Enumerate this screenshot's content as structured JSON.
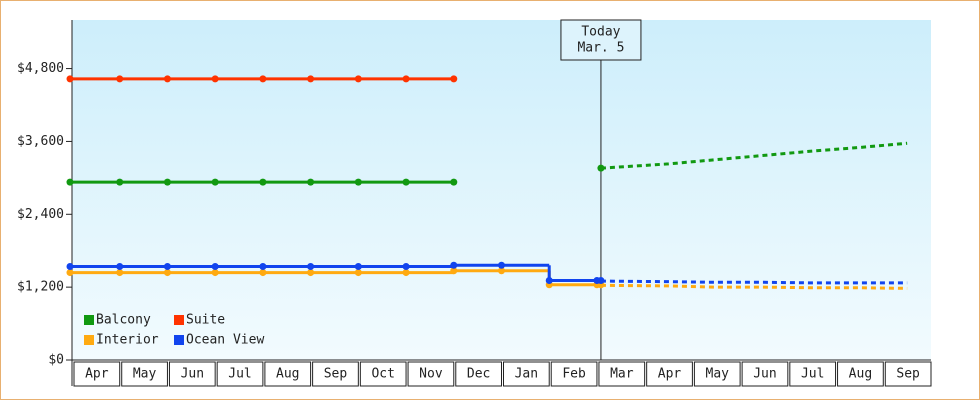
{
  "chart_data": {
    "type": "step-line",
    "categories": [
      "Apr",
      "May",
      "Jun",
      "Jul",
      "Aug",
      "Sep",
      "Oct",
      "Nov",
      "Dec",
      "Jan",
      "Feb",
      "Mar",
      "Apr",
      "May",
      "Jun",
      "Jul",
      "Aug",
      "Sep"
    ],
    "ylim": [
      0,
      5600
    ],
    "yticks": [
      {
        "value": 0,
        "label": "$0"
      },
      {
        "value": 1200,
        "label": "$1,200"
      },
      {
        "value": 2400,
        "label": "$2,400"
      },
      {
        "value": 3600,
        "label": "$3,600"
      },
      {
        "value": 4800,
        "label": "$4,800"
      }
    ],
    "series": [
      {
        "name": "Balcony",
        "color": "#119911",
        "values": [
          2930,
          2930,
          2930,
          2930,
          2930,
          2930,
          2930,
          2930,
          null,
          null,
          null,
          null,
          null,
          null,
          null,
          null,
          null,
          null
        ],
        "forecast": [
          null,
          null,
          null,
          null,
          null,
          null,
          null,
          null,
          null,
          null,
          null,
          3160,
          3230,
          3300,
          3370,
          3440,
          3500,
          3570
        ]
      },
      {
        "name": "Suite",
        "color": "#ff3300",
        "values": [
          4630,
          4630,
          4630,
          4630,
          4630,
          4630,
          4630,
          4630,
          null,
          null,
          null,
          null,
          null,
          null,
          null,
          null,
          null,
          null
        ]
      },
      {
        "name": "Interior",
        "color": "#ffaa11",
        "values": [
          1440,
          1440,
          1440,
          1440,
          1440,
          1440,
          1440,
          1440,
          1470,
          1470,
          1240,
          1240,
          null,
          null,
          null,
          null,
          null,
          null
        ],
        "forecast": [
          null,
          null,
          null,
          null,
          null,
          null,
          null,
          null,
          null,
          null,
          null,
          1230,
          1220,
          1200,
          1200,
          1190,
          1190,
          1180
        ]
      },
      {
        "name": "Ocean View",
        "color": "#1144ee",
        "values": [
          1540,
          1540,
          1540,
          1540,
          1540,
          1540,
          1540,
          1540,
          1560,
          1560,
          1310,
          1310,
          null,
          null,
          null,
          null,
          null,
          null
        ],
        "forecast": [
          null,
          null,
          null,
          null,
          null,
          null,
          null,
          null,
          null,
          null,
          null,
          1300,
          1290,
          1280,
          1280,
          1270,
          1270,
          1270
        ]
      }
    ],
    "annotation": {
      "lines": [
        "Today",
        "Mar. 5"
      ],
      "category": 11
    },
    "legend": "lower left"
  }
}
